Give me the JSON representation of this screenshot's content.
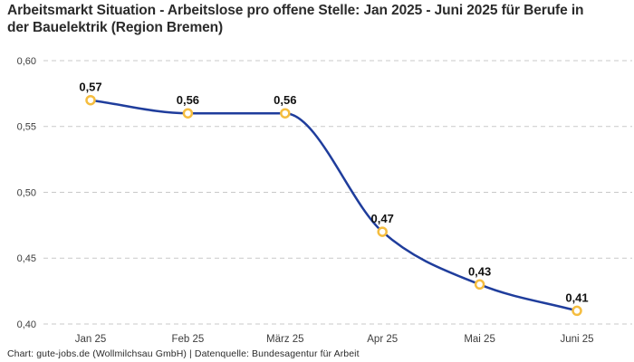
{
  "header": {
    "title": "Arbeitsmarkt Situation - Arbeitslose pro offene Stelle: Jan 2025 - Juni 2025 für Berufe in der Bauelektrik (Region Bremen)"
  },
  "footer": {
    "text": "Chart: gute-jobs.de (Wollmilchsau GmbH) | Datenquelle: Bundesagentur für Arbeit"
  },
  "chart_data": {
    "type": "line",
    "title": "Arbeitsmarkt Situation - Arbeitslose pro offene Stelle: Jan 2025 - Juni 2025 für Berufe in der Bauelektrik (Region Bremen)",
    "categories": [
      "Jan 25",
      "Feb 25",
      "März 25",
      "Apr 25",
      "Mai 25",
      "Juni 25"
    ],
    "values": [
      0.57,
      0.56,
      0.56,
      0.47,
      0.43,
      0.41
    ],
    "value_labels": [
      "0,57",
      "0,56",
      "0,56",
      "0,47",
      "0,43",
      "0,41"
    ],
    "y_ticks": [
      "0,60",
      "0,55",
      "0,50",
      "0,45",
      "0,40"
    ],
    "y_tick_values": [
      0.6,
      0.55,
      0.5,
      0.45,
      0.4
    ],
    "ylim": [
      0.4,
      0.6
    ],
    "xlabel": "",
    "ylabel": "",
    "grid": "horizontal-dashed",
    "legend": "none",
    "curve": "monotone",
    "colors": {
      "line": "#1f3d9c",
      "marker_ring": "#f5bd3f",
      "marker_fill": "#ffffff",
      "grid": "#c9c9c9",
      "axis_text": "#3d3d3d",
      "value_label": "#111111",
      "title_text": "#2b2b2b"
    }
  }
}
